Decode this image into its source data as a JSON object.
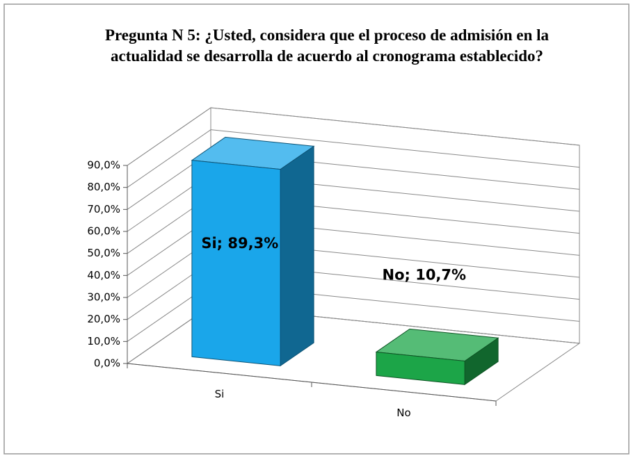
{
  "chart_data": {
    "type": "bar3d",
    "title": "Pregunta N 5: ¿Usted, considera que el proceso de admisión en la actualidad se desarrolla de acuerdo al cronograma establecido?",
    "categories": [
      "Si",
      "No"
    ],
    "values": [
      89.3,
      10.7
    ],
    "value_labels": [
      "Si; 89,3%",
      "No; 10,7%"
    ],
    "colors": [
      "#1aa6ea",
      "#1ca548"
    ],
    "ylim": [
      0,
      90
    ],
    "yticks": [
      {
        "value": 0,
        "label": "0,0%"
      },
      {
        "value": 10,
        "label": "10,0%"
      },
      {
        "value": 20,
        "label": "20,0%"
      },
      {
        "value": 30,
        "label": "30,0%"
      },
      {
        "value": 40,
        "label": "40,0%"
      },
      {
        "value": 50,
        "label": "50,0%"
      },
      {
        "value": 60,
        "label": "60,0%"
      },
      {
        "value": 70,
        "label": "70,0%"
      },
      {
        "value": 80,
        "label": "80,0%"
      },
      {
        "value": 90,
        "label": "90,0%"
      }
    ],
    "grid": true
  }
}
